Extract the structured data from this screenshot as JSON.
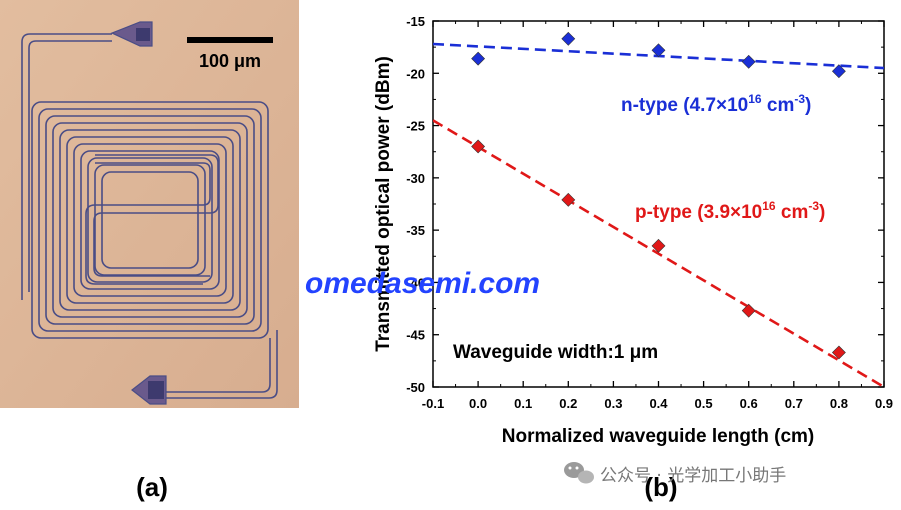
{
  "micrograph": {
    "scale_bar_label": "100 μm"
  },
  "panel_labels": {
    "a": "(a)",
    "b": "(b)"
  },
  "watermark": "omedasemi.com",
  "wechat_label": "公众号 · 光学加工小助手",
  "colors": {
    "n_type": "#1a2fd6",
    "p_type": "#e01818",
    "micrograph_bg": "#dcb497",
    "waveguide": "#4a4d86",
    "watermark": "#2343ff"
  },
  "chart_data": {
    "type": "scatter",
    "xlabel": "Normalized waveguide length (cm)",
    "ylabel": "Transmitted optical power (dBm)",
    "xlim": [
      -0.1,
      0.9
    ],
    "ylim": [
      -50,
      -15
    ],
    "xticks": [
      "-0.1",
      "0.0",
      "0.1",
      "0.2",
      "0.3",
      "0.4",
      "0.5",
      "0.6",
      "0.7",
      "0.8",
      "0.9"
    ],
    "yticks": [
      "-15",
      "-20",
      "-25",
      "-30",
      "-35",
      "-40",
      "-45",
      "-50"
    ],
    "grid": false,
    "annotation": "Waveguide width:1 μm",
    "series": [
      {
        "name_prefix": "n-type (4.7×10",
        "name_exp": "16",
        "name_unit": " cm",
        "name_unit_exp": "-3",
        "name_suffix": ")",
        "marker": "diamond",
        "color": "#1a2fd6",
        "x": [
          0.0,
          0.2,
          0.4,
          0.6,
          0.8
        ],
        "y": [
          -18.6,
          -16.7,
          -17.8,
          -18.9,
          -19.8
        ],
        "fit": {
          "x": [
            -0.1,
            0.9
          ],
          "y": [
            -17.2,
            -19.5
          ]
        }
      },
      {
        "name_prefix": "p-type  (3.9×10",
        "name_exp": "16",
        "name_unit": " cm",
        "name_unit_exp": "-3",
        "name_suffix": ")",
        "marker": "diamond",
        "color": "#e01818",
        "x": [
          0.0,
          0.2,
          0.4,
          0.6,
          0.8
        ],
        "y": [
          -27.0,
          -32.1,
          -36.5,
          -42.7,
          -46.7
        ],
        "fit": {
          "x": [
            -0.1,
            0.9
          ],
          "y": [
            -24.5,
            -50.0
          ]
        }
      }
    ]
  }
}
